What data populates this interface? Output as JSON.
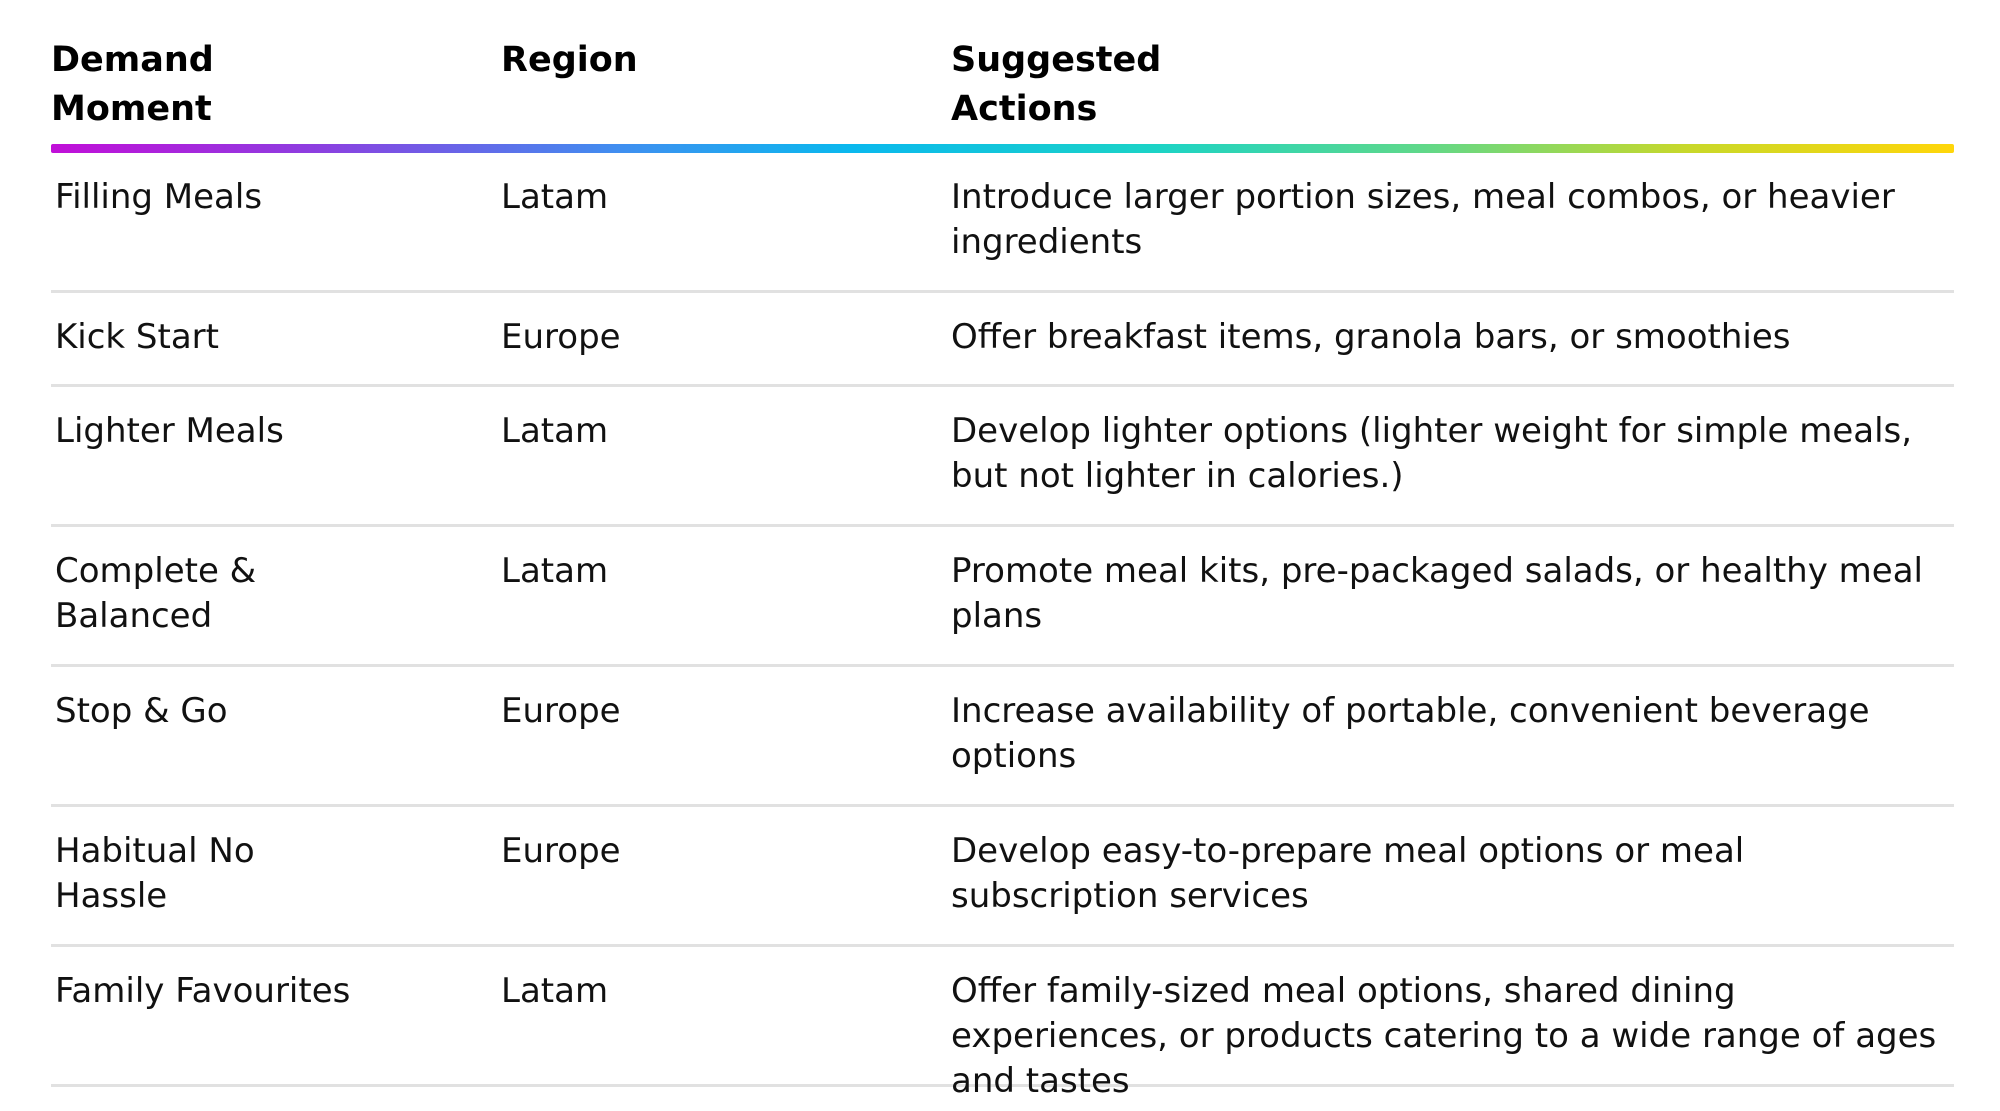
{
  "table": {
    "headers": {
      "demand_moment": "Demand\nMoment",
      "region": "Region",
      "suggested_actions": "Suggested\nActions"
    },
    "rows": [
      {
        "moment": "Filling Meals",
        "region": "Latam",
        "action": "Introduce larger portion sizes, meal combos, or heavier ingredients"
      },
      {
        "moment": "Kick Start",
        "region": "Europe",
        "action": "Offer breakfast items, granola bars, or smoothies"
      },
      {
        "moment": "Lighter Meals",
        "region": "Latam",
        "action": "Develop lighter options (lighter weight for simple meals, but not lighter in calories.)"
      },
      {
        "moment": "Complete & Balanced",
        "region": "Latam",
        "action": "Promote meal kits, pre-packaged salads, or healthy meal plans"
      },
      {
        "moment": "Stop & Go",
        "region": "Europe",
        "action": "Increase availability of portable, convenient beverage options"
      },
      {
        "moment": "Habitual No Hassle",
        "region": "Europe",
        "action": "Develop easy-to-prepare meal options or meal subscription services"
      },
      {
        "moment": "Family Favourites",
        "region": "Latam",
        "action": "Offer family-sized meal options, shared dining experiences, or products catering to a wide range of ages and tastes"
      }
    ]
  }
}
